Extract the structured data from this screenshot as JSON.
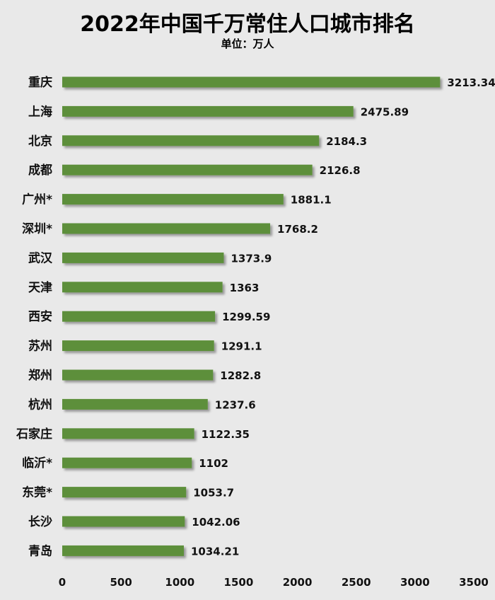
{
  "chart_data": {
    "type": "bar",
    "orientation": "horizontal",
    "title": "2022年中国千万常住人口城市排名",
    "subtitle": "单位：万人",
    "categories": [
      "重庆",
      "上海",
      "北京",
      "成都",
      "广州*",
      "深圳*",
      "武汉",
      "天津",
      "西安",
      "苏州",
      "郑州",
      "杭州",
      "石家庄",
      "临沂*",
      "东莞*",
      "长沙",
      "青岛"
    ],
    "values": [
      3213.34,
      2475.89,
      2184.3,
      2126.8,
      1881.1,
      1768.2,
      1373.9,
      1363,
      1299.59,
      1291.1,
      1282.8,
      1237.6,
      1122.35,
      1102,
      1053.7,
      1042.06,
      1034.21
    ],
    "value_labels": [
      "3213.34",
      "2475.89",
      "2184.3",
      "2126.8",
      "1881.1",
      "1768.2",
      "1373.9",
      "1363",
      "1299.59",
      "1291.1",
      "1282.8",
      "1237.6",
      "1122.35",
      "1102",
      "1053.7",
      "1042.06",
      "1034.21"
    ],
    "xlim": [
      0,
      3500
    ],
    "xticks": [
      0,
      500,
      1000,
      1500,
      2000,
      2500,
      3000,
      3500
    ],
    "grid": false,
    "legend": "none",
    "colors": {
      "bar": "#5d8f3a",
      "background": "#e9e9e9",
      "text": "#111111"
    }
  }
}
